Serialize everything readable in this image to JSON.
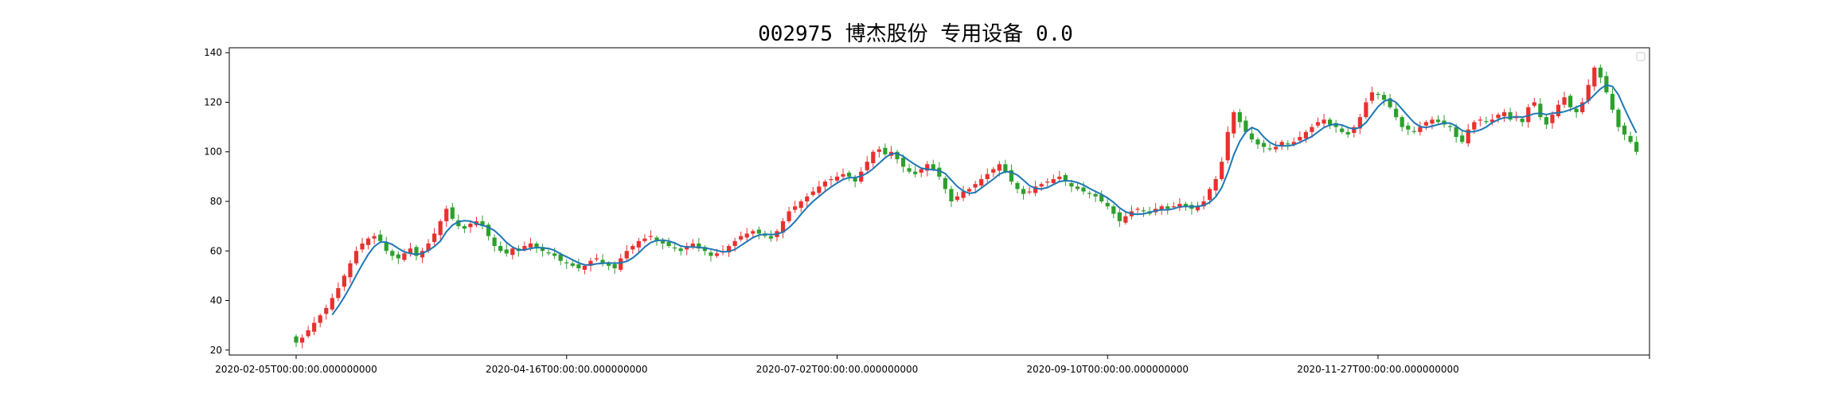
{
  "chart_data": {
    "type": "candlestick",
    "title": "002975 博杰股份 专用设备 0.0",
    "xlabel": "",
    "ylabel": "",
    "ylim": [
      18,
      142
    ],
    "yticks": [
      20,
      40,
      60,
      80,
      100,
      120,
      140
    ],
    "x_tick_labels": [
      {
        "label": "2020-02-05T00:00:00.000000000",
        "index": 0
      },
      {
        "label": "2020-04-16T00:00:00.000000000",
        "index": 45
      },
      {
        "label": "2020-07-02T00:00:00.000000000",
        "index": 90
      },
      {
        "label": "2020-09-10T00:00:00.000000000",
        "index": 135
      },
      {
        "label": "2020-11-27T00:00:00.000000000",
        "index": 180
      }
    ],
    "legend": "top-right (empty)",
    "grid": false,
    "up_color": "#e8312f",
    "down_color": "#2ca02c",
    "ma_color": "#1f77b4",
    "close": [
      23,
      25,
      28,
      31,
      34,
      37,
      41,
      45,
      50,
      55,
      60,
      63,
      65,
      66,
      64,
      60,
      58,
      57,
      59,
      61,
      58,
      60,
      63,
      67,
      72,
      77,
      73,
      70,
      69,
      71,
      72,
      70,
      66,
      62,
      60,
      59,
      61,
      60,
      62,
      63,
      61,
      60,
      59,
      58,
      56,
      55,
      54,
      53,
      54,
      56,
      57,
      55,
      54,
      53,
      57,
      60,
      62,
      64,
      65,
      66,
      64,
      63,
      62,
      61,
      60,
      62,
      63,
      61,
      60,
      58,
      59,
      60,
      62,
      64,
      66,
      67,
      68,
      67,
      66,
      65,
      68,
      72,
      76,
      78,
      80,
      82,
      84,
      86,
      88,
      89,
      90,
      91,
      90,
      88,
      92,
      96,
      100,
      101,
      99,
      100,
      97,
      94,
      92,
      91,
      93,
      95,
      93,
      90,
      85,
      80,
      82,
      84,
      85,
      87,
      89,
      91,
      93,
      95,
      92,
      88,
      85,
      83,
      84,
      86,
      87,
      88,
      89,
      90,
      88,
      86,
      85,
      84,
      83,
      82,
      80,
      78,
      75,
      72,
      74,
      76,
      77,
      76,
      75,
      77,
      78,
      77,
      78,
      79,
      78,
      77,
      78,
      80,
      85,
      89,
      96,
      108,
      116,
      112,
      108,
      105,
      103,
      102,
      101,
      102,
      104,
      103,
      104,
      106,
      108,
      110,
      112,
      113,
      111,
      110,
      108,
      107,
      110,
      114,
      120,
      124,
      123,
      121,
      118,
      114,
      110,
      109,
      108,
      110,
      112,
      113,
      112,
      111,
      110,
      106,
      104,
      109,
      112,
      113,
      112,
      113,
      115,
      116,
      113,
      114,
      112,
      118,
      120,
      114,
      111,
      115,
      119,
      122,
      118,
      116,
      120,
      127,
      134,
      130,
      124,
      117,
      110,
      107,
      104,
      100
    ]
  }
}
